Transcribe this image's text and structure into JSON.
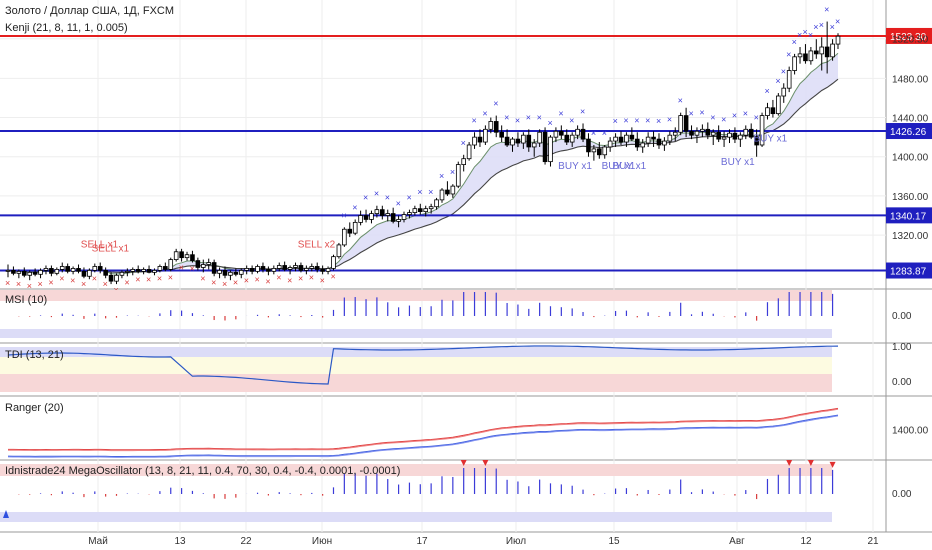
{
  "header": {
    "title": "Золото / Доллар США, 1Д, FXCM",
    "indicator": "Kenji (21, 8, 11, 1, 0.005)"
  },
  "panes": {
    "msi": "MSI (10)",
    "tdi": "TDI (13, 21)",
    "ranger": "Ranger (20)",
    "mega": "Idnistrade24 MegaOscillator (13, 8, 21, 11, 0.4, 70, 30, 0.4, -0.4, 0.0001, -0.0001)"
  },
  "colors": {
    "up": "#ffffff",
    "down": "#000000",
    "resistance": "#e41e1e",
    "support": "#1f1fbf",
    "buy": "#6b6bd6",
    "sell": "#e05050"
  },
  "price_axis": {
    "ticks": [
      "1520.50",
      "1480.00",
      "1440.00",
      "1400.00",
      "1360.00",
      "1320.00"
    ],
    "tick_values": [
      1520.5,
      1480,
      1440,
      1400,
      1360,
      1320
    ]
  },
  "levels": [
    {
      "value": 1523.3,
      "label": "1523.30",
      "color": "#e41e1e"
    },
    {
      "value": 1426.26,
      "label": "1426.26",
      "color": "#1f1fbf"
    },
    {
      "value": 1340.17,
      "label": "1340.17",
      "color": "#1f1fbf"
    },
    {
      "value": 1283.87,
      "label": "1283.87",
      "color": "#1f1fbf"
    }
  ],
  "signals": [
    {
      "text": "SELL x1",
      "bar": 16,
      "type": "sell"
    },
    {
      "text": "SELL x1",
      "bar": 18,
      "type": "sell"
    },
    {
      "text": "SELL x2",
      "bar": 56,
      "type": "sell"
    },
    {
      "text": "BUY x1",
      "bar": 104,
      "type": "buy"
    },
    {
      "text": "BUY x1",
      "bar": 112,
      "type": "buy"
    },
    {
      "text": "BUY x1",
      "bar": 114,
      "type": "buy"
    },
    {
      "text": "BUY x1",
      "bar": 134,
      "type": "buy"
    },
    {
      "text": "BUY x1",
      "bar": 140,
      "type": "buy"
    }
  ],
  "osc_axis": {
    "msi": "0.00",
    "tdi_top": "1.00",
    "tdi_bottom": "0.00",
    "ranger": "1400.00",
    "mega": "0.00"
  },
  "x_axis": [
    "Май",
    "13",
    "22",
    "Июн",
    "17",
    "Июл",
    "15",
    "Авг",
    "12",
    "21"
  ],
  "chart_data": {
    "type": "candlestick",
    "ylim": [
      1265,
      1560
    ],
    "ohlc": [
      [
        1283,
        1290,
        1277,
        1284
      ],
      [
        1284,
        1288,
        1279,
        1281
      ],
      [
        1281,
        1285,
        1276,
        1283
      ],
      [
        1283,
        1287,
        1277,
        1279
      ],
      [
        1279,
        1284,
        1274,
        1282
      ],
      [
        1282,
        1286,
        1278,
        1280
      ],
      [
        1280,
        1286,
        1276,
        1284
      ],
      [
        1284,
        1289,
        1280,
        1286
      ],
      [
        1286,
        1289,
        1278,
        1281
      ],
      [
        1281,
        1287,
        1279,
        1285
      ],
      [
        1285,
        1292,
        1282,
        1288
      ],
      [
        1288,
        1291,
        1281,
        1283
      ],
      [
        1283,
        1288,
        1280,
        1286
      ],
      [
        1286,
        1290,
        1281,
        1283
      ],
      [
        1283,
        1287,
        1276,
        1278
      ],
      [
        1278,
        1286,
        1275,
        1284
      ],
      [
        1284,
        1291,
        1282,
        1288
      ],
      [
        1288,
        1292,
        1281,
        1284
      ],
      [
        1284,
        1287,
        1276,
        1279
      ],
      [
        1279,
        1282,
        1270,
        1273
      ],
      [
        1273,
        1281,
        1270,
        1279
      ],
      [
        1279,
        1284,
        1276,
        1282
      ],
      [
        1282,
        1286,
        1278,
        1283
      ],
      [
        1283,
        1287,
        1279,
        1285
      ],
      [
        1285,
        1289,
        1281,
        1283
      ],
      [
        1283,
        1287,
        1280,
        1285
      ],
      [
        1285,
        1289,
        1281,
        1282
      ],
      [
        1282,
        1286,
        1279,
        1284
      ],
      [
        1284,
        1290,
        1282,
        1288
      ],
      [
        1288,
        1292,
        1283,
        1285
      ],
      [
        1285,
        1297,
        1283,
        1295
      ],
      [
        1295,
        1306,
        1293,
        1303
      ],
      [
        1303,
        1306,
        1293,
        1297
      ],
      [
        1297,
        1303,
        1294,
        1300
      ],
      [
        1300,
        1304,
        1292,
        1294
      ],
      [
        1294,
        1297,
        1284,
        1287
      ],
      [
        1287,
        1295,
        1282,
        1290
      ],
      [
        1290,
        1296,
        1285,
        1292
      ],
      [
        1292,
        1295,
        1278,
        1281
      ],
      [
        1281,
        1287,
        1276,
        1284
      ],
      [
        1284,
        1288,
        1276,
        1279
      ],
      [
        1279,
        1284,
        1274,
        1282
      ],
      [
        1282,
        1286,
        1278,
        1280
      ],
      [
        1280,
        1286,
        1276,
        1284
      ],
      [
        1284,
        1289,
        1280,
        1286
      ],
      [
        1286,
        1289,
        1280,
        1283
      ],
      [
        1283,
        1290,
        1281,
        1288
      ],
      [
        1288,
        1292,
        1282,
        1285
      ],
      [
        1285,
        1288,
        1279,
        1283
      ],
      [
        1283,
        1289,
        1280,
        1286
      ],
      [
        1286,
        1292,
        1283,
        1289
      ],
      [
        1289,
        1293,
        1283,
        1285
      ],
      [
        1285,
        1289,
        1280,
        1287
      ],
      [
        1287,
        1292,
        1283,
        1289
      ],
      [
        1289,
        1292,
        1282,
        1284
      ],
      [
        1284,
        1289,
        1280,
        1286
      ],
      [
        1286,
        1291,
        1283,
        1288
      ],
      [
        1288,
        1292,
        1282,
        1285
      ],
      [
        1285,
        1289,
        1280,
        1283
      ],
      [
        1283,
        1288,
        1280,
        1286
      ],
      [
        1286,
        1300,
        1284,
        1298
      ],
      [
        1298,
        1312,
        1296,
        1310
      ],
      [
        1310,
        1328,
        1308,
        1326
      ],
      [
        1326,
        1333,
        1318,
        1322
      ],
      [
        1322,
        1336,
        1320,
        1333
      ],
      [
        1333,
        1345,
        1330,
        1340
      ],
      [
        1340,
        1346,
        1333,
        1336
      ],
      [
        1336,
        1345,
        1332,
        1342
      ],
      [
        1342,
        1350,
        1338,
        1346
      ],
      [
        1346,
        1350,
        1336,
        1340
      ],
      [
        1340,
        1346,
        1334,
        1342
      ],
      [
        1342,
        1348,
        1332,
        1334
      ],
      [
        1334,
        1340,
        1328,
        1336
      ],
      [
        1336,
        1344,
        1333,
        1341
      ],
      [
        1341,
        1346,
        1337,
        1343
      ],
      [
        1343,
        1350,
        1340,
        1347
      ],
      [
        1347,
        1352,
        1341,
        1344
      ],
      [
        1344,
        1350,
        1339,
        1347
      ],
      [
        1347,
        1352,
        1342,
        1349
      ],
      [
        1349,
        1358,
        1346,
        1356
      ],
      [
        1356,
        1368,
        1353,
        1366
      ],
      [
        1366,
        1375,
        1360,
        1362
      ],
      [
        1362,
        1372,
        1358,
        1370
      ],
      [
        1370,
        1395,
        1368,
        1392
      ],
      [
        1392,
        1402,
        1385,
        1398
      ],
      [
        1398,
        1415,
        1396,
        1412
      ],
      [
        1412,
        1425,
        1408,
        1420
      ],
      [
        1420,
        1428,
        1410,
        1415
      ],
      [
        1415,
        1432,
        1412,
        1428
      ],
      [
        1428,
        1440,
        1424,
        1436
      ],
      [
        1436,
        1442,
        1420,
        1425
      ],
      [
        1425,
        1432,
        1415,
        1420
      ],
      [
        1420,
        1428,
        1410,
        1412
      ],
      [
        1412,
        1420,
        1405,
        1418
      ],
      [
        1418,
        1425,
        1410,
        1414
      ],
      [
        1414,
        1425,
        1408,
        1422
      ],
      [
        1422,
        1428,
        1405,
        1410
      ],
      [
        1410,
        1418,
        1400,
        1414
      ],
      [
        1414,
        1428,
        1410,
        1425
      ],
      [
        1425,
        1430,
        1392,
        1395
      ],
      [
        1395,
        1422,
        1390,
        1420
      ],
      [
        1420,
        1430,
        1415,
        1426
      ],
      [
        1426,
        1432,
        1418,
        1422
      ],
      [
        1422,
        1428,
        1412,
        1415
      ],
      [
        1415,
        1425,
        1410,
        1422
      ],
      [
        1422,
        1432,
        1418,
        1428
      ],
      [
        1428,
        1434,
        1415,
        1418
      ],
      [
        1418,
        1424,
        1400,
        1405
      ],
      [
        1405,
        1412,
        1396,
        1408
      ],
      [
        1408,
        1415,
        1398,
        1402
      ],
      [
        1402,
        1412,
        1398,
        1410
      ],
      [
        1410,
        1420,
        1405,
        1416
      ],
      [
        1416,
        1424,
        1410,
        1420
      ],
      [
        1420,
        1426,
        1412,
        1415
      ],
      [
        1415,
        1425,
        1410,
        1422
      ],
      [
        1422,
        1430,
        1416,
        1418
      ],
      [
        1418,
        1425,
        1406,
        1410
      ],
      [
        1410,
        1418,
        1404,
        1414
      ],
      [
        1414,
        1425,
        1410,
        1420
      ],
      [
        1420,
        1426,
        1410,
        1418
      ],
      [
        1418,
        1424,
        1408,
        1412
      ],
      [
        1412,
        1420,
        1406,
        1416
      ],
      [
        1416,
        1426,
        1412,
        1422
      ],
      [
        1422,
        1430,
        1416,
        1425
      ],
      [
        1425,
        1445,
        1422,
        1442
      ],
      [
        1442,
        1450,
        1420,
        1426
      ],
      [
        1426,
        1432,
        1418,
        1422
      ],
      [
        1422,
        1430,
        1414,
        1426
      ],
      [
        1426,
        1433,
        1420,
        1428
      ],
      [
        1428,
        1435,
        1418,
        1422
      ],
      [
        1422,
        1428,
        1412,
        1425
      ],
      [
        1425,
        1432,
        1415,
        1418
      ],
      [
        1418,
        1426,
        1410,
        1420
      ],
      [
        1420,
        1428,
        1414,
        1424
      ],
      [
        1424,
        1430,
        1414,
        1418
      ],
      [
        1418,
        1425,
        1410,
        1422
      ],
      [
        1422,
        1432,
        1418,
        1428
      ],
      [
        1428,
        1434,
        1418,
        1420
      ],
      [
        1420,
        1428,
        1400,
        1412
      ],
      [
        1412,
        1445,
        1410,
        1442
      ],
      [
        1442,
        1455,
        1438,
        1450
      ],
      [
        1450,
        1458,
        1440,
        1444
      ],
      [
        1444,
        1465,
        1442,
        1462
      ],
      [
        1462,
        1475,
        1455,
        1470
      ],
      [
        1470,
        1492,
        1466,
        1488
      ],
      [
        1488,
        1505,
        1484,
        1502
      ],
      [
        1502,
        1512,
        1495,
        1505
      ],
      [
        1505,
        1515,
        1495,
        1498
      ],
      [
        1498,
        1512,
        1494,
        1508
      ],
      [
        1508,
        1520,
        1500,
        1505
      ],
      [
        1505,
        1522,
        1488,
        1512
      ],
      [
        1512,
        1538,
        1485,
        1502
      ],
      [
        1502,
        1520,
        1498,
        1515
      ],
      [
        1515,
        1526,
        1510,
        1523
      ]
    ]
  }
}
